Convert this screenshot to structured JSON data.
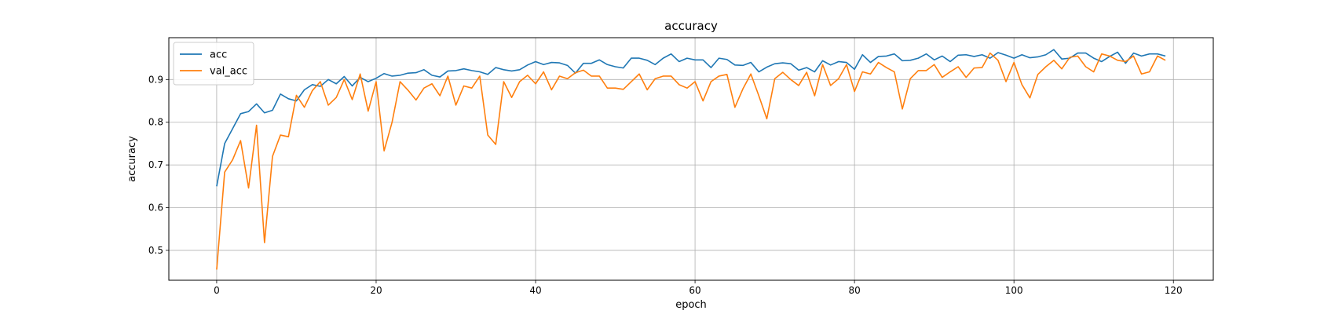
{
  "chart_data": {
    "type": "line",
    "title": "accuracy",
    "xlabel": "epoch",
    "ylabel": "accuracy",
    "xlim": [
      -6,
      125
    ],
    "ylim": [
      0.43,
      0.998
    ],
    "xticks": [
      0,
      20,
      40,
      60,
      80,
      100,
      120
    ],
    "yticks": [
      0.5,
      0.6,
      0.7,
      0.8,
      0.9
    ],
    "grid": true,
    "legend_position": "top-left",
    "series": [
      {
        "name": "acc",
        "color": "#1f77b4",
        "values": [
          0.65,
          0.75,
          0.785,
          0.82,
          0.825,
          0.843,
          0.822,
          0.828,
          0.866,
          0.855,
          0.85,
          0.876,
          0.888,
          0.884,
          0.9,
          0.89,
          0.907,
          0.885,
          0.905,
          0.895,
          0.903,
          0.914,
          0.908,
          0.91,
          0.915,
          0.916,
          0.923,
          0.91,
          0.906,
          0.92,
          0.921,
          0.925,
          0.921,
          0.918,
          0.912,
          0.928,
          0.923,
          0.92,
          0.923,
          0.934,
          0.942,
          0.935,
          0.94,
          0.939,
          0.933,
          0.915,
          0.938,
          0.938,
          0.946,
          0.935,
          0.93,
          0.927,
          0.95,
          0.95,
          0.945,
          0.935,
          0.95,
          0.96,
          0.942,
          0.95,
          0.946,
          0.946,
          0.928,
          0.95,
          0.947,
          0.934,
          0.933,
          0.94,
          0.918,
          0.929,
          0.937,
          0.939,
          0.937,
          0.922,
          0.928,
          0.918,
          0.944,
          0.934,
          0.942,
          0.94,
          0.924,
          0.958,
          0.94,
          0.954,
          0.955,
          0.96,
          0.944,
          0.945,
          0.95,
          0.96,
          0.946,
          0.955,
          0.942,
          0.957,
          0.958,
          0.954,
          0.958,
          0.95,
          0.963,
          0.957,
          0.95,
          0.958,
          0.951,
          0.953,
          0.958,
          0.97,
          0.948,
          0.95,
          0.962,
          0.962,
          0.95,
          0.942,
          0.954,
          0.964,
          0.938,
          0.962,
          0.955,
          0.96,
          0.96,
          0.955
        ]
      },
      {
        "name": "val_acc",
        "color": "#ff7f0e",
        "values": [
          0.455,
          0.683,
          0.712,
          0.757,
          0.646,
          0.793,
          0.518,
          0.72,
          0.77,
          0.766,
          0.863,
          0.835,
          0.874,
          0.895,
          0.84,
          0.858,
          0.9,
          0.853,
          0.913,
          0.826,
          0.895,
          0.733,
          0.8,
          0.895,
          0.875,
          0.852,
          0.88,
          0.89,
          0.862,
          0.908,
          0.84,
          0.885,
          0.88,
          0.908,
          0.77,
          0.748,
          0.895,
          0.858,
          0.895,
          0.91,
          0.89,
          0.918,
          0.876,
          0.908,
          0.902,
          0.916,
          0.922,
          0.908,
          0.908,
          0.88,
          0.88,
          0.877,
          0.895,
          0.913,
          0.876,
          0.902,
          0.908,
          0.908,
          0.888,
          0.88,
          0.895,
          0.85,
          0.895,
          0.908,
          0.912,
          0.835,
          0.878,
          0.913,
          0.862,
          0.808,
          0.902,
          0.917,
          0.9,
          0.886,
          0.917,
          0.862,
          0.935,
          0.886,
          0.902,
          0.935,
          0.872,
          0.918,
          0.913,
          0.94,
          0.928,
          0.918,
          0.831,
          0.902,
          0.921,
          0.921,
          0.935,
          0.905,
          0.918,
          0.93,
          0.905,
          0.927,
          0.928,
          0.962,
          0.945,
          0.895,
          0.94,
          0.888,
          0.857,
          0.912,
          0.93,
          0.945,
          0.925,
          0.952,
          0.955,
          0.93,
          0.918,
          0.96,
          0.955,
          0.945,
          0.942,
          0.955,
          0.913,
          0.918,
          0.955,
          0.945
        ]
      }
    ]
  }
}
